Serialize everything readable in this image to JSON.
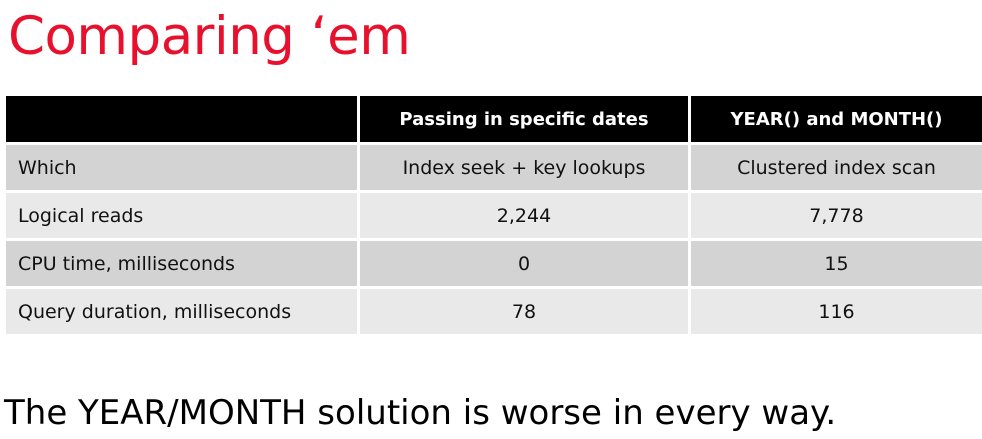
{
  "title": "Comparing ‘em",
  "table": {
    "headers": [
      "",
      "Passing in specific dates",
      "YEAR() and MONTH()"
    ],
    "rows": [
      {
        "label": "Which",
        "values": [
          "Index seek + key lookups",
          "Clustered index scan"
        ]
      },
      {
        "label": "Logical reads",
        "values": [
          "2,244",
          "7,778"
        ]
      },
      {
        "label": "CPU time, milliseconds",
        "values": [
          "0",
          "15"
        ]
      },
      {
        "label": "Query duration, milliseconds",
        "values": [
          "78",
          "116"
        ]
      }
    ]
  },
  "conclusion": "The YEAR/MONTH solution is worse in every way.",
  "colors": {
    "title": "#e8112d",
    "header_bg": "#000000",
    "header_text": "#ffffff",
    "row_dark": "#d3d3d3",
    "row_light": "#e9e9e9"
  }
}
